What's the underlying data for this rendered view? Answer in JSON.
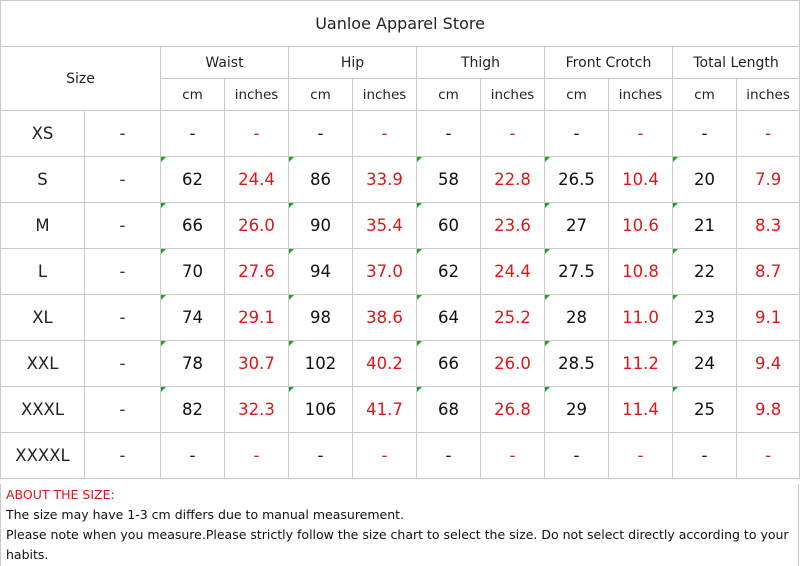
{
  "title": "Uanloe Apparel Store",
  "size_header": "Size",
  "groups": [
    "Waist",
    "Hip",
    "Thigh",
    "Front Crotch",
    "Total Length"
  ],
  "units": {
    "cm": "cm",
    "inches": "inches"
  },
  "rows": [
    {
      "size": "XS",
      "alt": "-",
      "values": [
        "-",
        "-",
        "-",
        "-",
        "-",
        "-",
        "-",
        "-",
        "-",
        "-"
      ]
    },
    {
      "size": "S",
      "alt": "-",
      "values": [
        "62",
        "24.4",
        "86",
        "33.9",
        "58",
        "22.8",
        "26.5",
        "10.4",
        "20",
        "7.9"
      ]
    },
    {
      "size": "M",
      "alt": "-",
      "values": [
        "66",
        "26.0",
        "90",
        "35.4",
        "60",
        "23.6",
        "27",
        "10.6",
        "21",
        "8.3"
      ]
    },
    {
      "size": "L",
      "alt": "-",
      "values": [
        "70",
        "27.6",
        "94",
        "37.0",
        "62",
        "24.4",
        "27.5",
        "10.8",
        "22",
        "8.7"
      ]
    },
    {
      "size": "XL",
      "alt": "-",
      "values": [
        "74",
        "29.1",
        "98",
        "38.6",
        "64",
        "25.2",
        "28",
        "11.0",
        "23",
        "9.1"
      ]
    },
    {
      "size": "XXL",
      "alt": "-",
      "values": [
        "78",
        "30.7",
        "102",
        "40.2",
        "66",
        "26.0",
        "28.5",
        "11.2",
        "24",
        "9.4"
      ]
    },
    {
      "size": "XXXL",
      "alt": "-",
      "values": [
        "82",
        "32.3",
        "106",
        "41.7",
        "68",
        "26.8",
        "29",
        "11.4",
        "25",
        "9.8"
      ]
    },
    {
      "size": "XXXXL",
      "alt": "-",
      "values": [
        "-",
        "-",
        "-",
        "-",
        "-",
        "-",
        "-",
        "-",
        "-",
        "-"
      ]
    }
  ],
  "notes": {
    "title": "ABOUT THE SIZE:",
    "lines": [
      "The size may have 1-3 cm differs due to manual measurement.",
      "Please note when you measure.Please strictly follow the size chart  to select the size. Do not select directly according to your habits."
    ]
  },
  "colors": {
    "inches_text": "#e0161b",
    "grid": "#c9c9c9",
    "flag": "#1e9e3a"
  }
}
